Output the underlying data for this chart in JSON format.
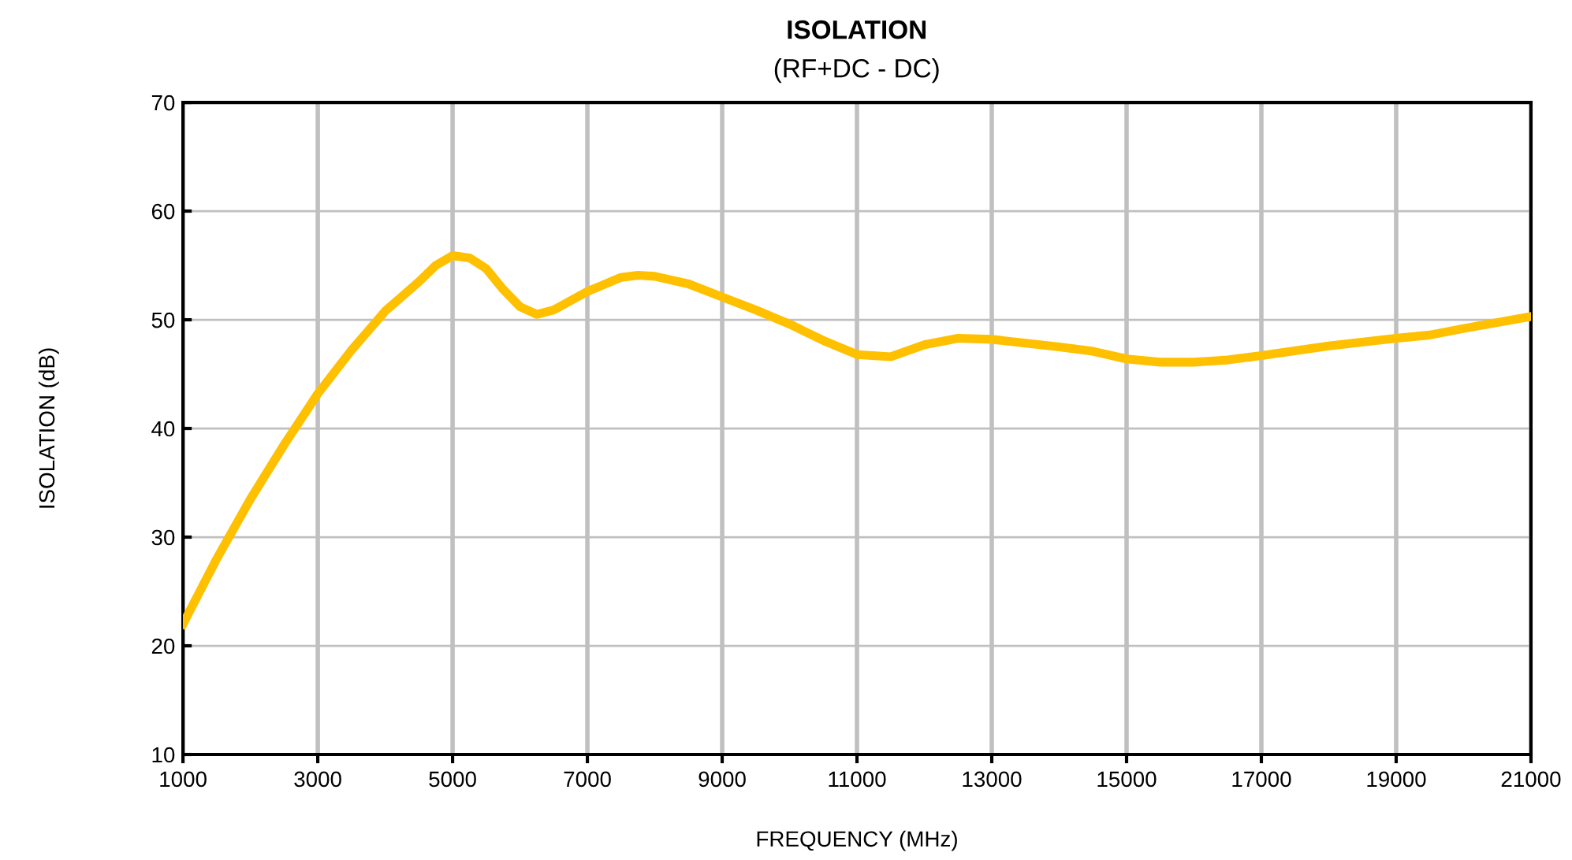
{
  "chart_data": {
    "type": "line",
    "title": "ISOLATION",
    "subtitle": "(RF+DC - DC)",
    "xlabel": "FREQUENCY (MHz)",
    "ylabel": "ISOLATION (dB)",
    "series": [
      {
        "color": "#ffc000",
        "x": [
          1000,
          1500,
          2000,
          2500,
          3000,
          3500,
          4000,
          4500,
          4750,
          5000,
          5250,
          5500,
          5750,
          6000,
          6250,
          6500,
          7000,
          7500,
          7750,
          8000,
          8500,
          9000,
          9500,
          10000,
          10500,
          11000,
          11500,
          12000,
          12500,
          13000,
          14000,
          14500,
          15000,
          15500,
          16000,
          16500,
          17000,
          18000,
          19000,
          19500,
          20000,
          21000
        ],
        "values": [
          22,
          28,
          33.5,
          38.5,
          43.2,
          47.2,
          50.8,
          53.5,
          55,
          55.9,
          55.7,
          54.7,
          52.8,
          51.2,
          50.5,
          50.9,
          52.6,
          53.9,
          54.1,
          54,
          53.3,
          52.1,
          50.9,
          49.6,
          48.1,
          46.8,
          46.6,
          47.7,
          48.3,
          48.2,
          47.5,
          47.1,
          46.4,
          46.1,
          46.1,
          46.3,
          46.7,
          47.6,
          48.3,
          48.6,
          49.2,
          50.3
        ]
      }
    ],
    "xlim": [
      1000,
      21000
    ],
    "ylim": [
      10,
      70
    ],
    "xticks": [
      1000,
      3000,
      5000,
      7000,
      9000,
      11000,
      13000,
      15000,
      17000,
      19000,
      21000
    ],
    "yticks": [
      10,
      20,
      30,
      40,
      50,
      60,
      70
    ],
    "grid": true,
    "legend": false,
    "marker": "none",
    "line_style": "solid"
  }
}
